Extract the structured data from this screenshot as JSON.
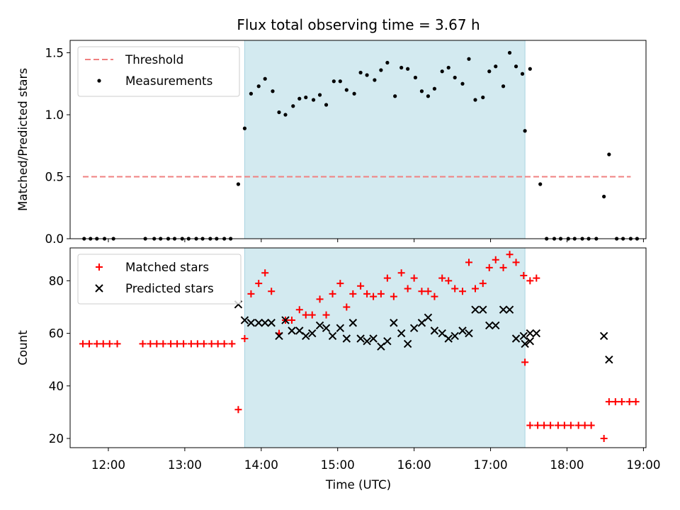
{
  "chart_data": {
    "title": "Flux total observing time = 3.67 h",
    "xlabel": "Time (UTC)",
    "x_ticks": [
      "12:00",
      "13:00",
      "14:00",
      "15:00",
      "16:00",
      "17:00",
      "18:00",
      "19:00"
    ],
    "xlim": [
      "11:30",
      "19:02"
    ],
    "shaded_interval": {
      "start": "13:47",
      "end": "17:27",
      "color": "#d3eaf0"
    },
    "panels": [
      {
        "type": "scatter",
        "ylabel": "Matched/Predicted stars",
        "ylim": [
          0,
          1.6
        ],
        "y_ticks": [
          "0.0",
          "0.5",
          "1.0",
          "1.5"
        ],
        "legend_position": "upper-left",
        "threshold": {
          "name": "Threshold",
          "value": 0.5,
          "x_start": "11:40",
          "x_end": "18:50",
          "color": "#f08080",
          "style": "dashed"
        },
        "series": [
          {
            "name": "Measurements",
            "marker": "dot",
            "color": "#000000",
            "points": [
              [
                "11:41",
                0
              ],
              [
                "11:46",
                0
              ],
              [
                "11:51",
                0
              ],
              [
                "11:57",
                0
              ],
              [
                "12:04",
                0
              ],
              [
                "12:29",
                0
              ],
              [
                "12:36",
                0
              ],
              [
                "12:41",
                0
              ],
              [
                "12:47",
                0
              ],
              [
                "12:52",
                0
              ],
              [
                "12:58",
                0
              ],
              [
                "13:03",
                0
              ],
              [
                "13:09",
                0
              ],
              [
                "13:14",
                0
              ],
              [
                "13:20",
                0
              ],
              [
                "13:25",
                0
              ],
              [
                "13:31",
                0
              ],
              [
                "13:36",
                0
              ],
              [
                "13:42",
                0.44
              ],
              [
                "13:47",
                0.89
              ],
              [
                "13:52",
                1.17
              ],
              [
                "13:58",
                1.23
              ],
              [
                "14:03",
                1.29
              ],
              [
                "14:09",
                1.19
              ],
              [
                "14:14",
                1.02
              ],
              [
                "14:19",
                1.0
              ],
              [
                "14:25",
                1.07
              ],
              [
                "14:30",
                1.13
              ],
              [
                "14:35",
                1.14
              ],
              [
                "14:41",
                1.12
              ],
              [
                "14:46",
                1.16
              ],
              [
                "14:51",
                1.08
              ],
              [
                "14:57",
                1.27
              ],
              [
                "15:02",
                1.27
              ],
              [
                "15:07",
                1.2
              ],
              [
                "15:13",
                1.17
              ],
              [
                "15:18",
                1.34
              ],
              [
                "15:23",
                1.32
              ],
              [
                "15:29",
                1.28
              ],
              [
                "15:34",
                1.36
              ],
              [
                "15:39",
                1.42
              ],
              [
                "15:45",
                1.15
              ],
              [
                "15:50",
                1.38
              ],
              [
                "15:55",
                1.37
              ],
              [
                "16:01",
                1.3
              ],
              [
                "16:06",
                1.19
              ],
              [
                "16:11",
                1.15
              ],
              [
                "16:16",
                1.21
              ],
              [
                "16:22",
                1.35
              ],
              [
                "16:27",
                1.38
              ],
              [
                "16:32",
                1.3
              ],
              [
                "16:38",
                1.25
              ],
              [
                "16:43",
                1.45
              ],
              [
                "16:48",
                1.12
              ],
              [
                "16:54",
                1.14
              ],
              [
                "16:59",
                1.35
              ],
              [
                "17:04",
                1.39
              ],
              [
                "17:10",
                1.23
              ],
              [
                "17:15",
                1.5
              ],
              [
                "17:20",
                1.39
              ],
              [
                "17:25",
                1.33
              ],
              [
                "17:31",
                1.37
              ],
              [
                "17:27",
                0.87
              ],
              [
                "17:39",
                0.44
              ],
              [
                "17:44",
                0
              ],
              [
                "17:50",
                0
              ],
              [
                "17:55",
                0
              ],
              [
                "18:01",
                0
              ],
              [
                "18:06",
                0
              ],
              [
                "18:12",
                0
              ],
              [
                "18:17",
                0
              ],
              [
                "18:23",
                0
              ],
              [
                "18:29",
                0.34
              ],
              [
                "18:33",
                0.68
              ],
              [
                "18:39",
                0
              ],
              [
                "18:44",
                0
              ],
              [
                "18:50",
                0
              ],
              [
                "18:55",
                0
              ]
            ]
          }
        ]
      },
      {
        "type": "scatter",
        "ylabel": "Count",
        "ylim": [
          16.5,
          92.5
        ],
        "y_ticks": [
          "20",
          "40",
          "60",
          "80"
        ],
        "legend_position": "upper-left",
        "series": [
          {
            "name": "Matched stars",
            "marker": "plus",
            "color": "#ff0000",
            "points": [
              [
                "11:40",
                56
              ],
              [
                "11:45",
                56
              ],
              [
                "11:51",
                56
              ],
              [
                "11:56",
                56
              ],
              [
                "12:01",
                56
              ],
              [
                "12:07",
                56
              ],
              [
                "12:27",
                56
              ],
              [
                "12:33",
                56
              ],
              [
                "12:38",
                56
              ],
              [
                "12:43",
                56
              ],
              [
                "12:49",
                56
              ],
              [
                "12:54",
                56
              ],
              [
                "12:59",
                56
              ],
              [
                "13:05",
                56
              ],
              [
                "13:10",
                56
              ],
              [
                "13:15",
                56
              ],
              [
                "13:21",
                56
              ],
              [
                "13:26",
                56
              ],
              [
                "13:31",
                56
              ],
              [
                "13:37",
                56
              ],
              [
                "13:42",
                31
              ],
              [
                "13:47",
                58
              ],
              [
                "13:52",
                75
              ],
              [
                "13:58",
                79
              ],
              [
                "14:03",
                83
              ],
              [
                "14:08",
                76
              ],
              [
                "14:14",
                60
              ],
              [
                "14:19",
                65
              ],
              [
                "14:24",
                65
              ],
              [
                "14:30",
                69
              ],
              [
                "14:35",
                67
              ],
              [
                "14:40",
                67
              ],
              [
                "14:46",
                73
              ],
              [
                "14:51",
                67
              ],
              [
                "14:56",
                75
              ],
              [
                "15:02",
                79
              ],
              [
                "15:07",
                70
              ],
              [
                "15:12",
                75
              ],
              [
                "15:18",
                78
              ],
              [
                "15:23",
                75
              ],
              [
                "15:28",
                74
              ],
              [
                "15:34",
                75
              ],
              [
                "15:39",
                81
              ],
              [
                "15:44",
                74
              ],
              [
                "15:50",
                83
              ],
              [
                "15:55",
                77
              ],
              [
                "16:00",
                81
              ],
              [
                "16:06",
                76
              ],
              [
                "16:11",
                76
              ],
              [
                "16:16",
                74
              ],
              [
                "16:22",
                81
              ],
              [
                "16:27",
                80
              ],
              [
                "16:32",
                77
              ],
              [
                "16:38",
                76
              ],
              [
                "16:43",
                87
              ],
              [
                "16:48",
                77
              ],
              [
                "16:54",
                79
              ],
              [
                "16:59",
                85
              ],
              [
                "17:04",
                88
              ],
              [
                "17:10",
                85
              ],
              [
                "17:15",
                90
              ],
              [
                "17:20",
                87
              ],
              [
                "17:26",
                82
              ],
              [
                "17:31",
                80
              ],
              [
                "17:36",
                81
              ],
              [
                "17:27",
                49
              ],
              [
                "17:31",
                25
              ],
              [
                "17:37",
                25
              ],
              [
                "17:42",
                25
              ],
              [
                "17:47",
                25
              ],
              [
                "17:53",
                25
              ],
              [
                "17:58",
                25
              ],
              [
                "18:03",
                25
              ],
              [
                "18:09",
                25
              ],
              [
                "18:14",
                25
              ],
              [
                "18:19",
                25
              ],
              [
                "18:29",
                20
              ],
              [
                "18:33",
                34
              ],
              [
                "18:38",
                34
              ],
              [
                "18:43",
                34
              ],
              [
                "18:49",
                34
              ],
              [
                "18:54",
                34
              ]
            ]
          },
          {
            "name": "Predicted stars",
            "marker": "x",
            "color": "#000000",
            "points": [
              [
                "13:42",
                71
              ],
              [
                "13:47",
                65
              ],
              [
                "13:52",
                64
              ],
              [
                "13:58",
                64
              ],
              [
                "14:03",
                64
              ],
              [
                "14:08",
                64
              ],
              [
                "14:14",
                59
              ],
              [
                "14:19",
                65
              ],
              [
                "14:24",
                61
              ],
              [
                "14:30",
                61
              ],
              [
                "14:35",
                59
              ],
              [
                "14:40",
                60
              ],
              [
                "14:46",
                63
              ],
              [
                "14:51",
                62
              ],
              [
                "14:56",
                59
              ],
              [
                "15:02",
                62
              ],
              [
                "15:07",
                58
              ],
              [
                "15:12",
                64
              ],
              [
                "15:18",
                58
              ],
              [
                "15:23",
                57
              ],
              [
                "15:28",
                58
              ],
              [
                "15:34",
                55
              ],
              [
                "15:39",
                57
              ],
              [
                "15:44",
                64
              ],
              [
                "15:50",
                60
              ],
              [
                "15:55",
                56
              ],
              [
                "16:00",
                62
              ],
              [
                "16:06",
                64
              ],
              [
                "16:11",
                66
              ],
              [
                "16:16",
                61
              ],
              [
                "16:22",
                60
              ],
              [
                "16:27",
                58
              ],
              [
                "16:32",
                59
              ],
              [
                "16:38",
                61
              ],
              [
                "16:43",
                60
              ],
              [
                "16:48",
                69
              ],
              [
                "16:54",
                69
              ],
              [
                "16:59",
                63
              ],
              [
                "17:04",
                63
              ],
              [
                "17:10",
                69
              ],
              [
                "17:15",
                69
              ],
              [
                "17:20",
                58
              ],
              [
                "17:26",
                59
              ],
              [
                "17:31",
                60
              ],
              [
                "17:36",
                60
              ],
              [
                "17:27",
                56
              ],
              [
                "17:31",
                57
              ],
              [
                "18:29",
                59
              ],
              [
                "18:33",
                50
              ]
            ]
          }
        ]
      }
    ]
  }
}
